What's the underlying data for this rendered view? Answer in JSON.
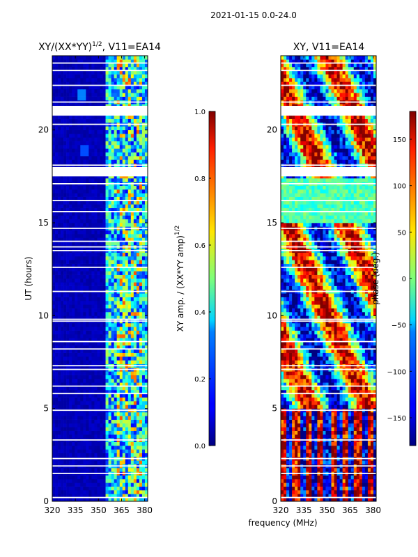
{
  "suptitle": "2021-01-15 0.0-24.0",
  "chart_data": [
    {
      "type": "heatmap",
      "title_main": "XY/(XX*YY)",
      "title_sup": "1/2",
      "title_rest": ", V11=EA14",
      "xlabel": "",
      "ylabel": "UT (hours)",
      "xlim": [
        320,
        382
      ],
      "ylim": [
        0,
        24
      ],
      "xticks": [
        320,
        335,
        350,
        365,
        380
      ],
      "yticks": [
        0,
        5,
        10,
        15,
        20
      ],
      "colorbar": {
        "label_main": "XY amp. / (XX*YY amp)",
        "label_sup": "1/2",
        "range": [
          0.0,
          1.0
        ],
        "ticks": [
          "0.0",
          "0.2",
          "0.4",
          "0.6",
          "0.8",
          "1.0"
        ],
        "tick_values": [
          0.0,
          0.2,
          0.4,
          0.6,
          0.8,
          1.0
        ],
        "colormap": "jet"
      }
    },
    {
      "type": "heatmap",
      "title_main": "XY, V11=EA14",
      "xlabel": "frequency (MHz)",
      "ylabel": "",
      "xlim": [
        320,
        382
      ],
      "ylim": [
        0,
        24
      ],
      "xticks": [
        320,
        335,
        350,
        365,
        380
      ],
      "yticks": [
        0,
        5,
        10,
        15,
        20
      ],
      "colorbar": {
        "label_main": "phase (deg.)",
        "range": [
          -180,
          180
        ],
        "ticks": [
          "150",
          "100",
          "50",
          "0",
          "−50",
          "−100",
          "−150"
        ],
        "tick_values": [
          150,
          100,
          50,
          0,
          -50,
          -100,
          -150
        ],
        "colormap": "jet"
      }
    }
  ],
  "colors": {
    "jet_dark_blue": "#00007f",
    "jet_red": "#7f0000",
    "background": "#ffffff"
  }
}
